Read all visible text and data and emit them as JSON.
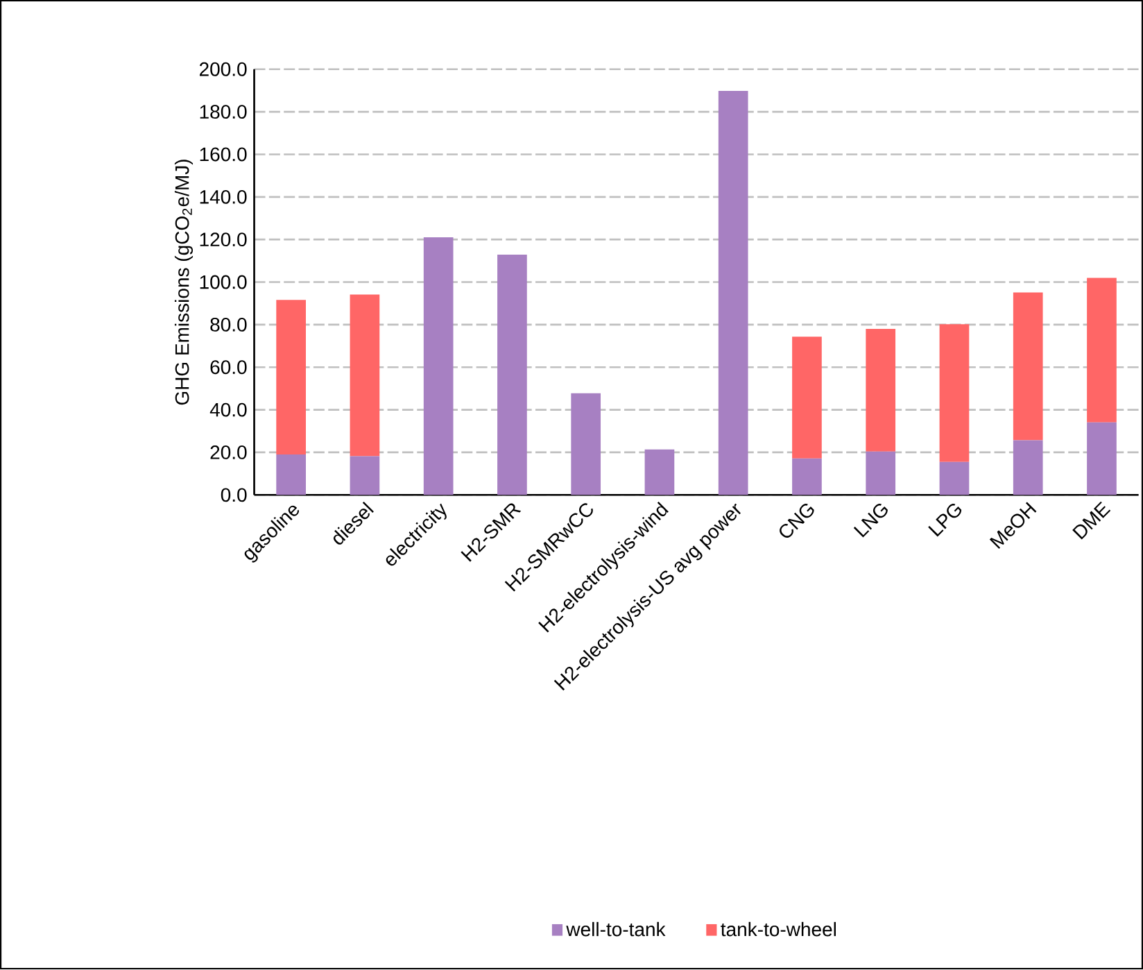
{
  "chart_data": {
    "type": "bar",
    "stacked": true,
    "ylabel": "GHG Emissions  (gCO$_{2}$e/MJ)",
    "categories": [
      "gasoline",
      "diesel",
      "electricity",
      "H2-SMR",
      "H2-SMRwCC",
      "H2-electrolysis-wind",
      "H2-electrolysis-US avg power",
      "CNG",
      "LNG",
      "LPG",
      "MeOH",
      "DME"
    ],
    "series": [
      {
        "name": "well-to-tank",
        "color": "#a780c2",
        "values": [
          19.0,
          18.2,
          121.0,
          112.9,
          47.8,
          21.4,
          189.8,
          17.1,
          20.4,
          15.5,
          25.7,
          34.1
        ]
      },
      {
        "name": "tank-to-wheel",
        "color": "#ff6666",
        "values": [
          72.6,
          75.9,
          null,
          null,
          null,
          null,
          null,
          57.2,
          57.6,
          64.7,
          69.4,
          67.9
        ]
      }
    ],
    "ylim": [
      0,
      200
    ],
    "yticks": [
      {
        "value": 0,
        "label": "0.0"
      },
      {
        "value": 20,
        "label": "20.0"
      },
      {
        "value": 40,
        "label": "40.0"
      },
      {
        "value": 60,
        "label": "60.0"
      },
      {
        "value": 80,
        "label": "80.0"
      },
      {
        "value": 100,
        "label": "100.0"
      },
      {
        "value": 120,
        "label": "120.0"
      },
      {
        "value": 140,
        "label": "140.0"
      },
      {
        "value": 160,
        "label": "160.0"
      },
      {
        "value": 180,
        "label": "180.0"
      },
      {
        "value": 200,
        "label": "200.0"
      }
    ],
    "grid": "y",
    "legend": "bottom"
  }
}
